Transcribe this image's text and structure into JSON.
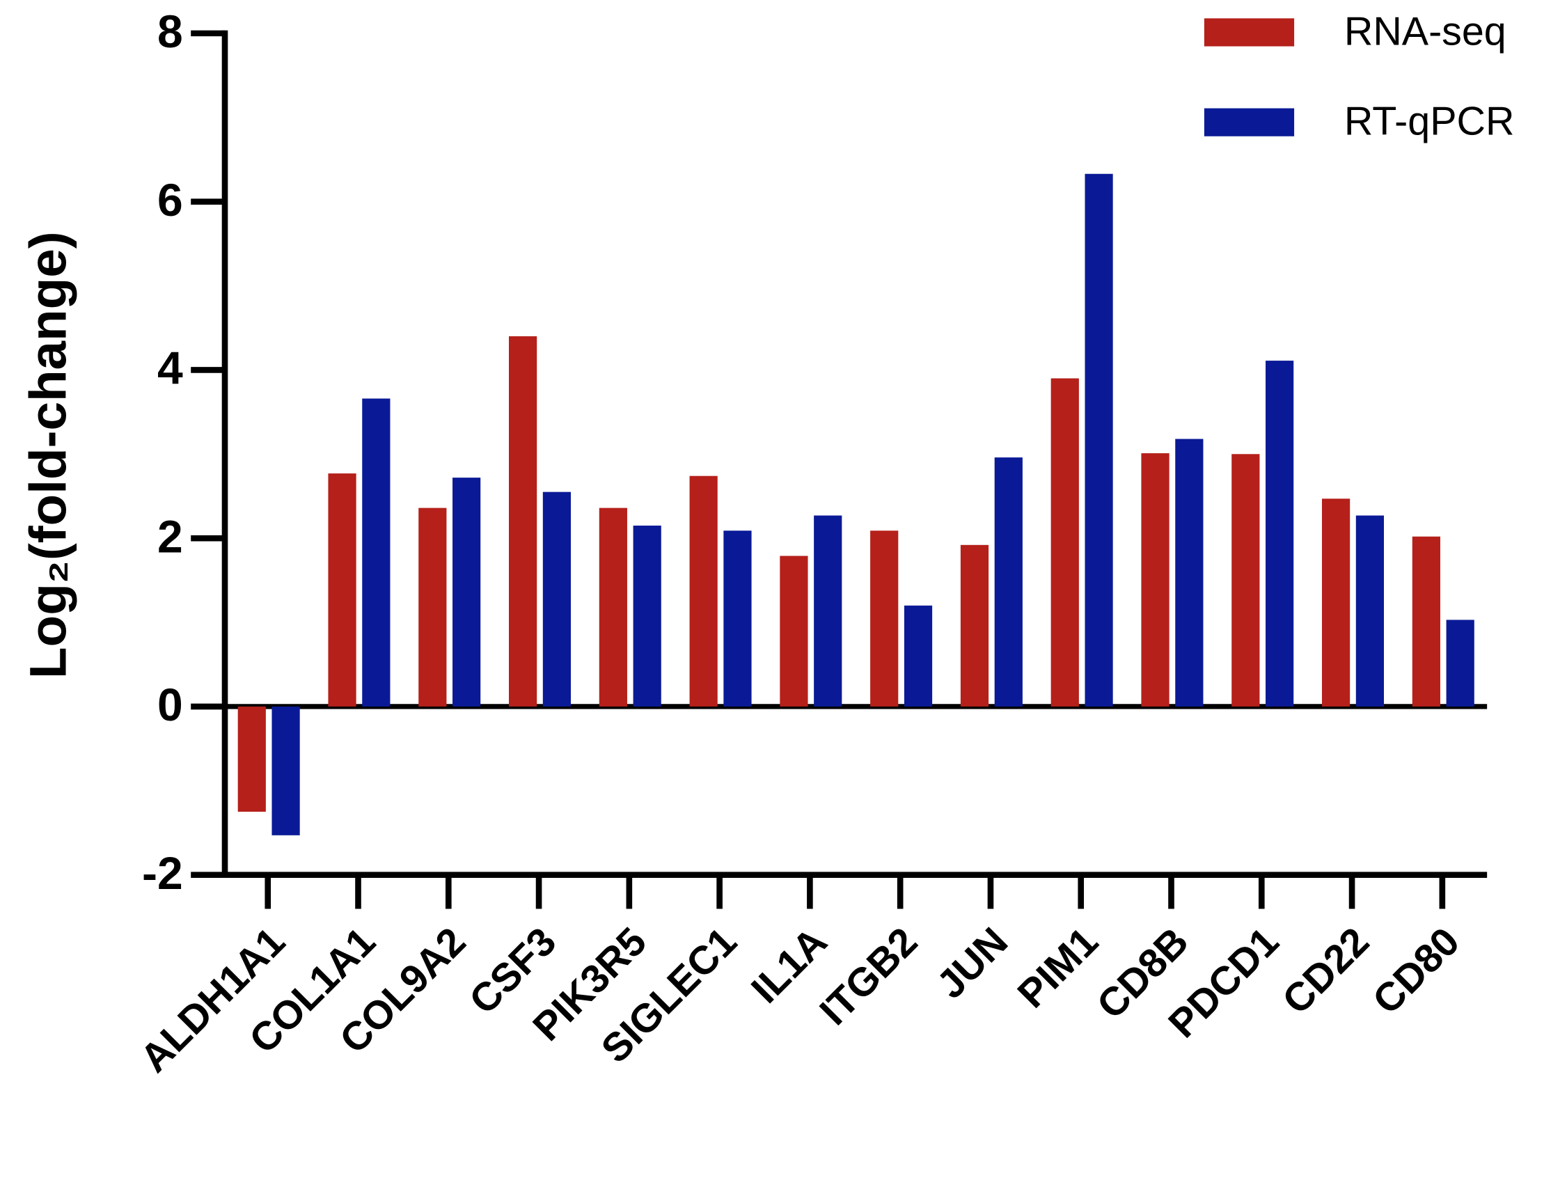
{
  "chart_data": {
    "type": "bar",
    "ylabel": "Log₂(fold-change)",
    "categories": [
      "ALDH1A1",
      "COL1A1",
      "COL9A2",
      "CSF3",
      "PIK3R5",
      "SIGLEC1",
      "IL1A",
      "ITGB2",
      "JUN",
      "PIM1",
      "CD8B",
      "PDCD1",
      "CD22",
      "CD80"
    ],
    "series": [
      {
        "name": "RNA-seq",
        "color": "#b5201a",
        "values": [
          -1.25,
          2.77,
          2.36,
          4.4,
          2.36,
          2.74,
          1.79,
          2.09,
          1.92,
          3.9,
          3.01,
          3.0,
          2.47,
          2.02
        ]
      },
      {
        "name": "RT-qPCR",
        "color": "#0a1a96",
        "values": [
          -1.53,
          3.66,
          2.72,
          2.55,
          2.15,
          2.09,
          2.27,
          1.2,
          2.96,
          6.33,
          3.18,
          4.11,
          2.27,
          1.03
        ]
      }
    ],
    "ylim": [
      -2,
      8
    ],
    "yticks": [
      -2,
      0,
      2,
      4,
      6,
      8
    ],
    "legend": "upper right"
  }
}
